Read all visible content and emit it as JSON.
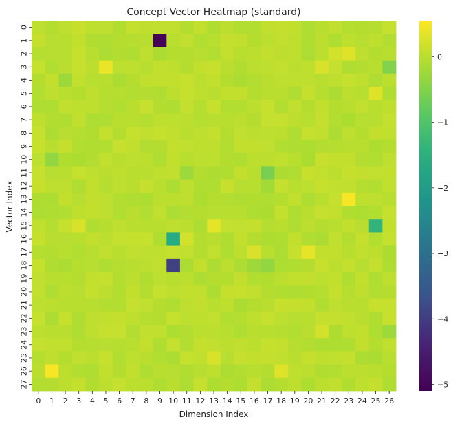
{
  "chart_data": {
    "type": "heatmap",
    "title": "Concept Vector Heatmap (standard)",
    "xlabel": "Dimension Index",
    "ylabel": "Vector Index",
    "x_ticks": [
      "0",
      "1",
      "2",
      "3",
      "4",
      "5",
      "6",
      "7",
      "8",
      "9",
      "10",
      "11",
      "12",
      "13",
      "14",
      "15",
      "16",
      "17",
      "18",
      "19",
      "20",
      "21",
      "22",
      "23",
      "24",
      "25",
      "26"
    ],
    "y_ticks": [
      "0",
      "1",
      "2",
      "3",
      "4",
      "5",
      "6",
      "7",
      "8",
      "9",
      "10",
      "11",
      "12",
      "13",
      "14",
      "15",
      "16",
      "17",
      "18",
      "19",
      "20",
      "21",
      "22",
      "23",
      "24",
      "25",
      "26",
      "27"
    ],
    "colormap": "viridis",
    "vmin": -5.1,
    "vmax": 0.55,
    "colorbar_ticks": [
      "0",
      "−1",
      "−2",
      "−3",
      "−4",
      "−5"
    ],
    "colorbar_tick_values": [
      0,
      -1,
      -2,
      -3,
      -4,
      -5
    ],
    "baseline_value": 0.0,
    "outliers": [
      {
        "row": 1,
        "col": 9,
        "value": -5.05
      },
      {
        "row": 3,
        "col": 5,
        "value": 0.4
      },
      {
        "row": 3,
        "col": 21,
        "value": 0.25
      },
      {
        "row": 3,
        "col": 26,
        "value": -0.5
      },
      {
        "row": 2,
        "col": 23,
        "value": 0.3
      },
      {
        "row": 5,
        "col": 25,
        "value": 0.3
      },
      {
        "row": 10,
        "col": 1,
        "value": -0.35
      },
      {
        "row": 11,
        "col": 17,
        "value": -0.6
      },
      {
        "row": 11,
        "col": 11,
        "value": -0.25
      },
      {
        "row": 13,
        "col": 23,
        "value": 0.5
      },
      {
        "row": 15,
        "col": 25,
        "value": -1.4
      },
      {
        "row": 15,
        "col": 13,
        "value": 0.35
      },
      {
        "row": 15,
        "col": 3,
        "value": 0.25
      },
      {
        "row": 16,
        "col": 10,
        "value": -1.6
      },
      {
        "row": 16,
        "col": 11,
        "value": 0.2
      },
      {
        "row": 17,
        "col": 20,
        "value": 0.35
      },
      {
        "row": 17,
        "col": 16,
        "value": 0.25
      },
      {
        "row": 18,
        "col": 10,
        "value": -3.95
      },
      {
        "row": 18,
        "col": 17,
        "value": -0.35
      },
      {
        "row": 18,
        "col": 16,
        "value": -0.25
      },
      {
        "row": 26,
        "col": 1,
        "value": 0.5
      },
      {
        "row": 26,
        "col": 18,
        "value": 0.3
      },
      {
        "row": 23,
        "col": 21,
        "value": 0.2
      },
      {
        "row": 25,
        "col": 13,
        "value": 0.25
      },
      {
        "row": 2,
        "col": 22,
        "value": 0.2
      },
      {
        "row": 12,
        "col": 17,
        "value": -0.2
      },
      {
        "row": 4,
        "col": 2,
        "value": -0.25
      },
      {
        "row": 23,
        "col": 26,
        "value": -0.25
      }
    ]
  }
}
